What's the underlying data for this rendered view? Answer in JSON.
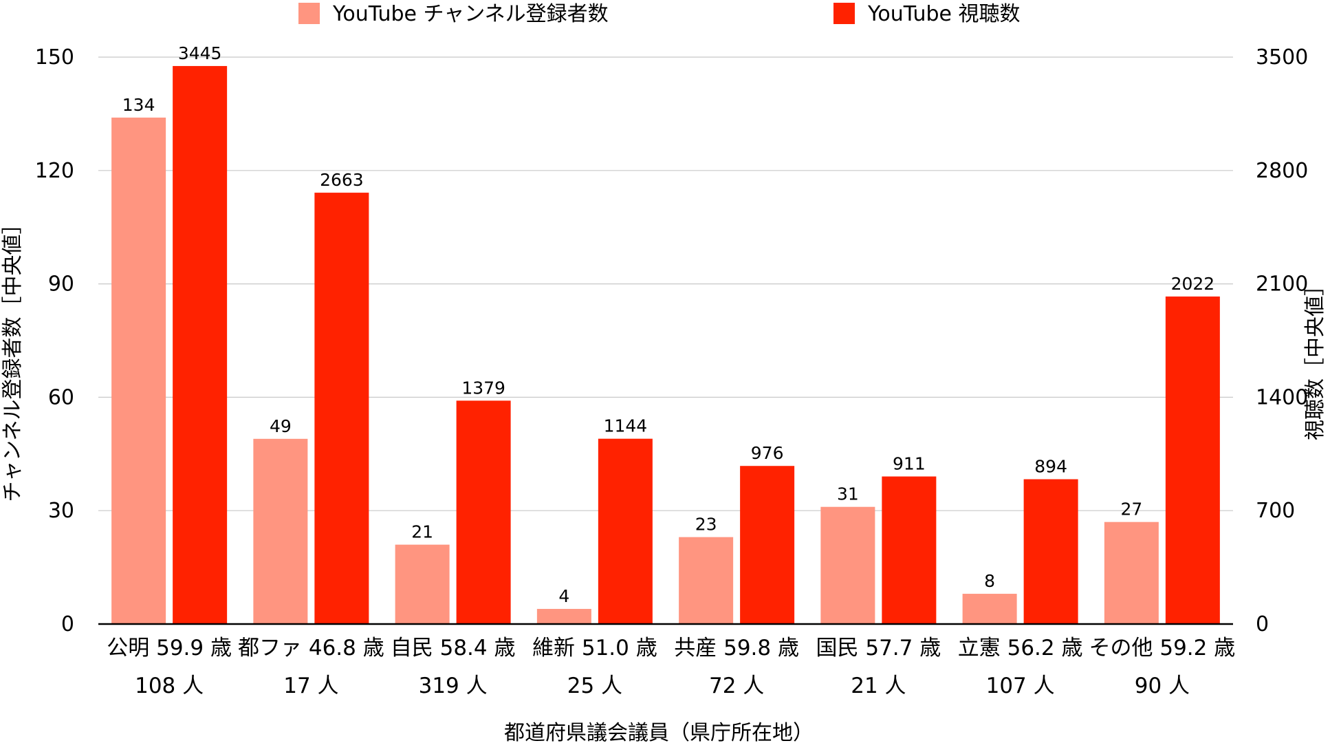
{
  "chart_data": {
    "type": "bar",
    "categories": [
      [
        "公明 59.9 歳",
        "108 人"
      ],
      [
        "都ファ 46.8 歳",
        "17 人"
      ],
      [
        "自民 58.4 歳",
        "319 人"
      ],
      [
        "維新 51.0 歳",
        "25 人"
      ],
      [
        "共産 59.8 歳",
        "72 人"
      ],
      [
        "国民 57.7 歳",
        "21 人"
      ],
      [
        "立憲 56.2 歳",
        "107 人"
      ],
      [
        "その他 59.2 歳",
        "90 人"
      ]
    ],
    "series": [
      {
        "name": "YouTube チャンネル登録者数",
        "axis": "left",
        "color": "#ff9580",
        "values": [
          134,
          49,
          21,
          4,
          23,
          31,
          8,
          27
        ]
      },
      {
        "name": "YouTube 視聴数",
        "axis": "right",
        "color": "#ff2200",
        "values": [
          3445,
          2663,
          1379,
          1144,
          976,
          911,
          894,
          2022
        ]
      }
    ],
    "xlabel": "都道府県議会議員（県庁所在地）",
    "ylabel_left": "チャンネル登録者数［中央値］",
    "ylabel_right": "視聴数［中央値］",
    "ylim_left": [
      0,
      150
    ],
    "yticks_left": [
      0,
      30,
      60,
      90,
      120,
      150
    ],
    "ylim_right": [
      0,
      3500
    ],
    "yticks_right": [
      0,
      700,
      1400,
      2100,
      2800,
      3500
    ],
    "grid": true,
    "legend_position": "top"
  }
}
